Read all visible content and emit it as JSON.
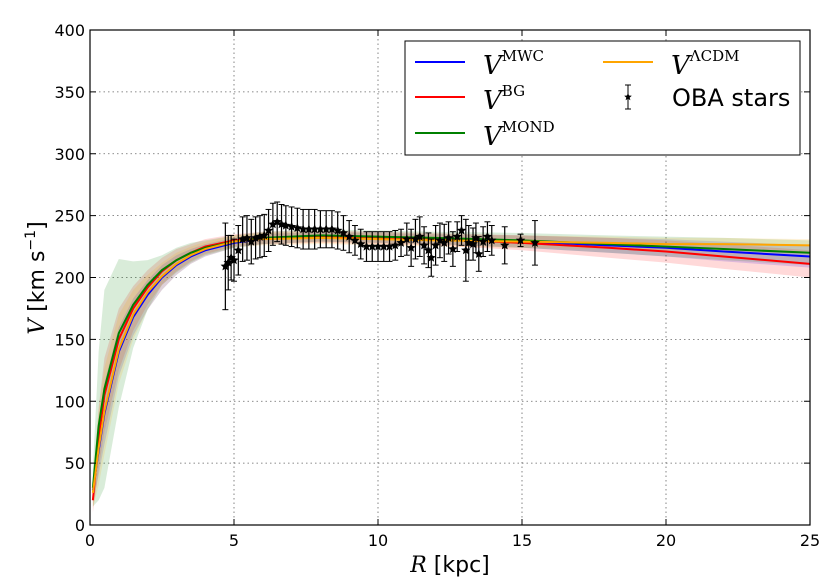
{
  "chart_data": {
    "type": "line",
    "title": "",
    "xlabel": {
      "var": "R",
      "unit": "[kpc]"
    },
    "ylabel": {
      "var": "V",
      "unit": "[km s",
      "exp": "−1",
      "close": "]"
    },
    "xlim": [
      0,
      25
    ],
    "ylim": [
      0,
      400
    ],
    "xticks": [
      "0",
      "5",
      "10",
      "15",
      "20",
      "25"
    ],
    "yticks": [
      "0",
      "50",
      "100",
      "150",
      "200",
      "250",
      "300",
      "350",
      "400"
    ],
    "grid": true,
    "legend_position": "top-right",
    "model_r": [
      0.1,
      0.3,
      0.5,
      1,
      1.5,
      2,
      2.5,
      3,
      3.5,
      4,
      5,
      6,
      8,
      10,
      12,
      15,
      18,
      20,
      22,
      25
    ],
    "series": [
      {
        "name": "V",
        "sup": "MWC",
        "color": "#0000ff",
        "values": [
          28,
          60,
          90,
          140,
          168,
          186,
          200,
          210,
          217,
          222,
          228,
          231,
          233,
          232,
          231,
          229,
          226,
          224,
          221,
          217
        ],
        "band": [
          10,
          20,
          25,
          20,
          15,
          12,
          10,
          8,
          6,
          5,
          4,
          4,
          4,
          4,
          4,
          5,
          6,
          7,
          8,
          9
        ]
      },
      {
        "name": "V",
        "sup": "BG",
        "color": "#ff0000",
        "values": [
          20,
          70,
          105,
          150,
          175,
          192,
          205,
          214,
          220,
          225,
          230,
          232,
          233,
          232,
          231,
          228,
          224,
          221,
          217,
          211
        ],
        "band": [
          10,
          25,
          30,
          25,
          18,
          14,
          11,
          9,
          7,
          6,
          5,
          5,
          5,
          5,
          5,
          6,
          8,
          9,
          10,
          11
        ]
      },
      {
        "name": "V",
        "sup": "MOND",
        "color": "#008000",
        "values": [
          30,
          80,
          110,
          155,
          178,
          194,
          206,
          214,
          220,
          224,
          229,
          232,
          234,
          233,
          232,
          230,
          227,
          225,
          223,
          220
        ],
        "band": [
          15,
          60,
          80,
          60,
          35,
          20,
          12,
          10,
          8,
          6,
          5,
          5,
          5,
          5,
          5,
          6,
          7,
          8,
          9,
          10
        ]
      },
      {
        "name": "V",
        "sup": "ΛCDM",
        "color": "#ffa500",
        "values": [
          26,
          62,
          92,
          142,
          170,
          188,
          201,
          211,
          218,
          223,
          229,
          231,
          232,
          231,
          230,
          229,
          228,
          227,
          227,
          226
        ],
        "band": [
          12,
          30,
          35,
          28,
          20,
          14,
          11,
          9,
          7,
          6,
          5,
          5,
          5,
          5,
          5,
          5,
          5,
          5,
          5,
          5
        ]
      }
    ],
    "observations": {
      "name": "OBA stars",
      "color": "#000000",
      "points": [
        [
          4.7,
          209,
          35
        ],
        [
          4.8,
          212,
          22
        ],
        [
          4.9,
          216,
          18
        ],
        [
          5.0,
          214,
          17
        ],
        [
          5.15,
          222,
          20
        ],
        [
          5.3,
          231,
          18
        ],
        [
          5.45,
          232,
          18
        ],
        [
          5.6,
          229,
          18
        ],
        [
          5.75,
          232,
          17
        ],
        [
          5.9,
          233,
          17
        ],
        [
          6.05,
          234,
          17
        ],
        [
          6.2,
          238,
          17
        ],
        [
          6.35,
          243,
          17
        ],
        [
          6.5,
          245,
          16
        ],
        [
          6.65,
          243,
          16
        ],
        [
          6.8,
          242,
          16
        ],
        [
          7.0,
          241,
          16
        ],
        [
          7.2,
          240,
          16
        ],
        [
          7.4,
          239,
          16
        ],
        [
          7.6,
          239,
          16
        ],
        [
          7.8,
          239,
          16
        ],
        [
          8.0,
          239,
          15
        ],
        [
          8.2,
          239,
          15
        ],
        [
          8.4,
          239,
          15
        ],
        [
          8.6,
          238,
          15
        ],
        [
          8.8,
          236,
          14
        ],
        [
          9.0,
          233,
          13
        ],
        [
          9.2,
          230,
          12
        ],
        [
          9.4,
          227,
          12
        ],
        [
          9.6,
          225,
          12
        ],
        [
          9.8,
          225,
          12
        ],
        [
          10.0,
          225,
          12
        ],
        [
          10.2,
          225,
          12
        ],
        [
          10.4,
          225,
          12
        ],
        [
          10.6,
          226,
          12
        ],
        [
          10.8,
          228,
          11
        ],
        [
          11.0,
          231,
          13
        ],
        [
          11.15,
          224,
          15
        ],
        [
          11.3,
          231,
          16
        ],
        [
          11.45,
          233,
          16
        ],
        [
          11.6,
          226,
          15
        ],
        [
          11.75,
          222,
          14
        ],
        [
          11.85,
          216,
          15
        ],
        [
          12.0,
          226,
          16
        ],
        [
          12.15,
          230,
          14
        ],
        [
          12.3,
          228,
          15
        ],
        [
          12.45,
          232,
          13
        ],
        [
          12.6,
          223,
          14
        ],
        [
          12.75,
          233,
          12
        ],
        [
          12.9,
          238,
          12
        ],
        [
          13.05,
          222,
          25
        ],
        [
          13.15,
          228,
          14
        ],
        [
          13.3,
          227,
          13
        ],
        [
          13.4,
          232,
          12
        ],
        [
          13.5,
          219,
          14
        ],
        [
          13.65,
          229,
          12
        ],
        [
          13.8,
          233,
          12
        ],
        [
          13.95,
          230,
          12
        ],
        [
          14.4,
          226,
          15
        ],
        [
          14.95,
          230,
          5
        ],
        [
          15.45,
          228,
          18
        ]
      ]
    }
  }
}
